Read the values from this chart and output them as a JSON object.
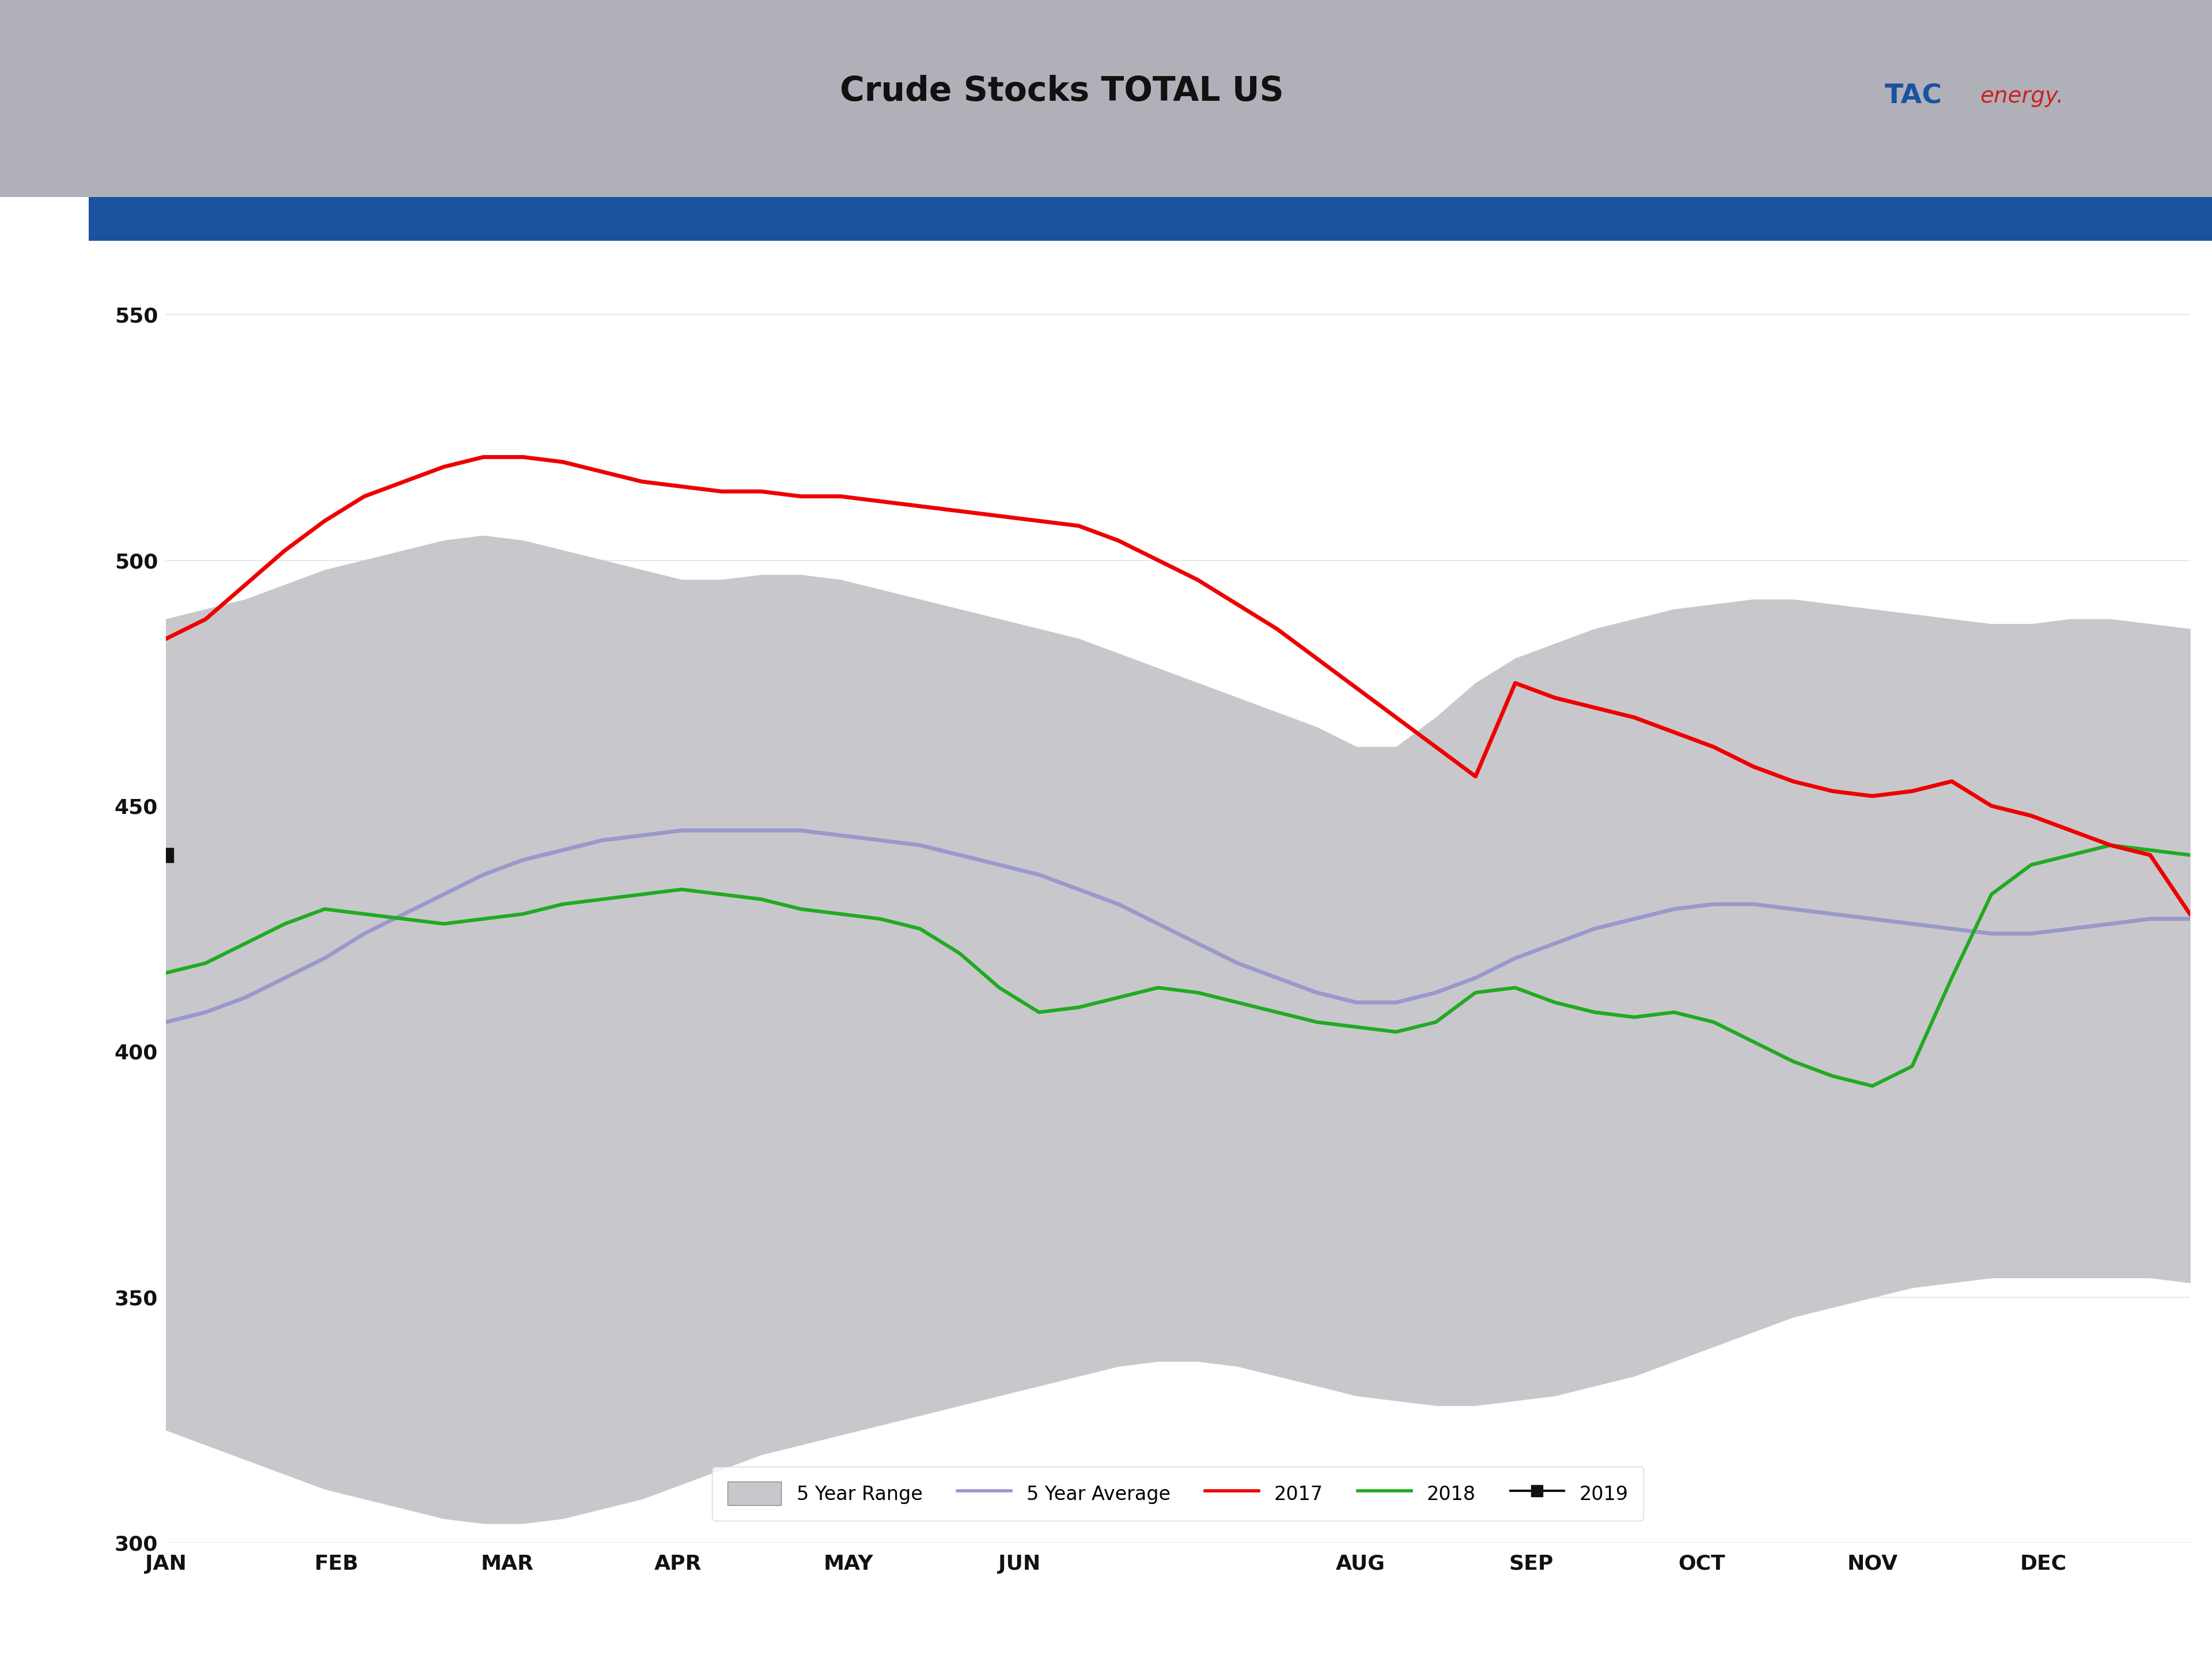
{
  "title": "Crude Stocks TOTAL US",
  "title_bg_color": "#b0b0b8",
  "title_bar_color": "#1a52a0",
  "title_fontsize": 42,
  "background_color": "#ffffff",
  "plot_bg_color": "#ffffff",
  "five_year_range_color": "#c8c8cc",
  "five_year_avg_color": "#9999cc",
  "year2017_color": "#ee0000",
  "year2018_color": "#22aa22",
  "year2019_color": "#111111",
  "ylim": [
    300,
    560
  ],
  "yticks": [
    300,
    350,
    400,
    450,
    500,
    550
  ],
  "xtick_labels": [
    "JAN",
    "FEB",
    "MAR",
    "APR",
    "MAY",
    "JUN",
    "AUG",
    "SEP",
    "OCT",
    "NOV",
    "DEC"
  ],
  "logo_text_tac": "TAC",
  "logo_text_energy": "energy.",
  "logo_tac_color": "#1a52a0",
  "logo_energy_color": "#cc2222",
  "n_points": 52,
  "range_upper": [
    488,
    490,
    492,
    495,
    498,
    500,
    502,
    504,
    505,
    504,
    502,
    500,
    498,
    496,
    496,
    497,
    497,
    496,
    494,
    492,
    490,
    488,
    486,
    484,
    481,
    478,
    475,
    472,
    469,
    466,
    462,
    462,
    468,
    475,
    480,
    483,
    486,
    488,
    490,
    491,
    492,
    492,
    491,
    490,
    489,
    488,
    487,
    487,
    488,
    488,
    487,
    486
  ],
  "range_lower": [
    323,
    320,
    317,
    314,
    311,
    309,
    307,
    305,
    304,
    304,
    305,
    307,
    309,
    312,
    315,
    318,
    320,
    322,
    324,
    326,
    328,
    330,
    332,
    334,
    336,
    337,
    337,
    336,
    334,
    332,
    330,
    329,
    328,
    328,
    329,
    330,
    332,
    334,
    337,
    340,
    343,
    346,
    348,
    350,
    352,
    353,
    354,
    354,
    354,
    354,
    354,
    353
  ],
  "avg_5yr": [
    406,
    408,
    411,
    415,
    419,
    424,
    428,
    432,
    436,
    439,
    441,
    443,
    444,
    445,
    445,
    445,
    445,
    444,
    443,
    442,
    440,
    438,
    436,
    433,
    430,
    426,
    422,
    418,
    415,
    412,
    410,
    410,
    412,
    415,
    419,
    422,
    425,
    427,
    429,
    430,
    430,
    429,
    428,
    427,
    426,
    425,
    424,
    424,
    425,
    426,
    427,
    427
  ],
  "year2017": [
    484,
    488,
    495,
    502,
    508,
    513,
    516,
    519,
    521,
    521,
    520,
    518,
    516,
    515,
    514,
    514,
    513,
    513,
    512,
    511,
    510,
    509,
    508,
    507,
    504,
    500,
    496,
    491,
    486,
    480,
    474,
    468,
    462,
    456,
    475,
    472,
    470,
    468,
    465,
    462,
    458,
    455,
    453,
    452,
    453,
    455,
    450,
    448,
    445,
    442,
    440,
    428
  ],
  "year2018": [
    416,
    418,
    422,
    426,
    429,
    428,
    427,
    426,
    427,
    428,
    430,
    431,
    432,
    433,
    432,
    431,
    429,
    428,
    427,
    425,
    420,
    413,
    408,
    409,
    411,
    413,
    412,
    410,
    408,
    406,
    405,
    404,
    406,
    412,
    413,
    410,
    408,
    407,
    408,
    406,
    402,
    398,
    395,
    393,
    397,
    415,
    432,
    438,
    440,
    442,
    441,
    440
  ],
  "year2019_x": [
    0
  ],
  "year2019_y": [
    440
  ]
}
